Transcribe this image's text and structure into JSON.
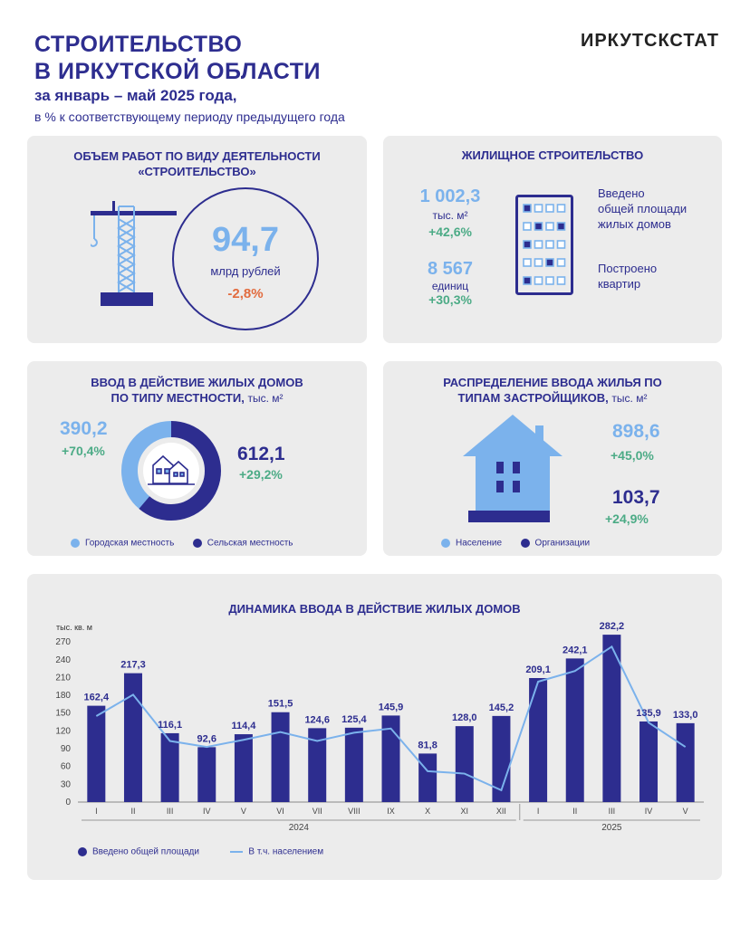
{
  "header": {
    "title_line1": "СТРОИТЕЛЬСТВО",
    "title_line2": "В ИРКУТСКОЙ ОБЛАСТИ",
    "subtitle": "за январь – май 2025 года,",
    "subnote": "в % к соответствующему периоду предыдущего года",
    "brand": "ИРКУТСКСТАТ"
  },
  "construction": {
    "title_line1": "ОБЪЕМ РАБОТ ПО ВИДУ ДЕЯТЕЛЬНОСТИ",
    "title_line2": "«СТРОИТЕЛЬСТВО»",
    "value": "94,7",
    "unit": "млрд рублей",
    "change": "-2,8%"
  },
  "housing": {
    "title": "ЖИЛИЩНОЕ СТРОИТЕЛЬСТВО",
    "area_value": "1 002,3",
    "area_unit": "тыс. м²",
    "area_change": "+42,6%",
    "area_label_line1": "Введено",
    "area_label_line2": "общей площади",
    "area_label_line3": "жилых домов",
    "flats_value": "8 567",
    "flats_unit": "единиц",
    "flats_change": "+30,3%",
    "flats_label_line1": "Построено",
    "flats_label_line2": "квартир"
  },
  "locality": {
    "title_line1": "ВВОД В ДЕЙСТВИЕ ЖИЛЫХ ДОМОВ",
    "title_line2": "ПО ТИПУ МЕСТНОСТИ,",
    "title_unit": "тыс. м²",
    "urban_value": "390,2",
    "urban_change": "+70,4%",
    "rural_value": "612,1",
    "rural_change": "+29,2%",
    "legend_urban": "Городская местность",
    "legend_rural": "Сельская местность",
    "urban_share": 38.9,
    "color_urban": "#7bb2ec",
    "color_rural": "#2d2d8f"
  },
  "developers": {
    "title_line1": "РАСПРЕДЕЛЕНИЕ ВВОДА ЖИЛЬЯ ПО",
    "title_line2": "ТИПАМ ЗАСТРОЙЩИКОВ,",
    "title_unit": "тыс. м²",
    "population_value": "898,6",
    "population_change": "+45,0%",
    "org_value": "103,7",
    "org_change": "+24,9%",
    "legend_population": "Население",
    "legend_org": "Организации"
  },
  "chart_data": {
    "type": "bar",
    "title": "ДИНАМИКА ВВОДА В ДЕЙСТВИЕ ЖИЛЫХ ДОМОВ",
    "ylabel": "тыс. кв. м",
    "ylim": [
      0,
      290
    ],
    "yticks": [
      0,
      30,
      60,
      90,
      120,
      150,
      180,
      210,
      240,
      270
    ],
    "categories": [
      "I",
      "II",
      "III",
      "IV",
      "V",
      "VI",
      "VII",
      "VIII",
      "IX",
      "X",
      "XI",
      "XII",
      "I",
      "II",
      "III",
      "IV",
      "V"
    ],
    "year_groups": [
      {
        "label": "2024",
        "start": 0,
        "end": 11
      },
      {
        "label": "2025",
        "start": 12,
        "end": 16
      }
    ],
    "series": [
      {
        "name": "Введено общей площади",
        "type": "bar",
        "color": "#2d2d8f",
        "values": [
          162.4,
          217.3,
          116.1,
          92.6,
          114.4,
          151.5,
          124.6,
          125.4,
          145.9,
          81.8,
          128.0,
          145.2,
          209.1,
          242.1,
          282.2,
          135.9,
          133.0
        ],
        "labels": [
          "162,4",
          "217,3",
          "116,1",
          "92,6",
          "114,4",
          "151,5",
          "124,6",
          "125,4",
          "145,9",
          "81,8",
          "128,0",
          "145,2",
          "209,1",
          "242,1",
          "282,2",
          "135,9",
          "133,0"
        ]
      },
      {
        "name": "В т.ч. населением",
        "type": "line",
        "color": "#7bb2ec",
        "values": [
          145,
          181,
          103,
          93,
          105,
          118,
          103,
          117,
          124,
          52,
          48,
          20,
          203,
          221,
          262,
          134,
          93
        ]
      }
    ]
  }
}
